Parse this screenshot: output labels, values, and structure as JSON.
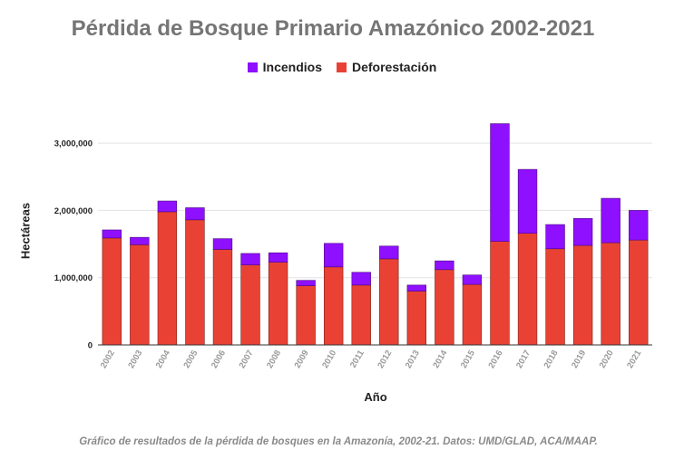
{
  "chart_data": {
    "type": "bar",
    "stacked": true,
    "title": "Pérdida de Bosque Primario Amazónico 2002-2021",
    "xlabel": "Año",
    "ylabel": "Hectáreas",
    "ylim": [
      0,
      3500000
    ],
    "yticks": [
      0,
      1000000,
      2000000,
      3000000
    ],
    "ytick_labels": [
      "0",
      "1,000,000",
      "2,000,000",
      "3,000,000"
    ],
    "grid": true,
    "legend_position": "top",
    "categories": [
      "2002",
      "2003",
      "2004",
      "2005",
      "2006",
      "2007",
      "2008",
      "2009",
      "2010",
      "2011",
      "2012",
      "2013",
      "2014",
      "2015",
      "2016",
      "2017",
      "2018",
      "2019",
      "2020",
      "2021"
    ],
    "series": [
      {
        "name": "Deforestación",
        "color": "#e94235",
        "values": [
          1590000,
          1490000,
          1980000,
          1860000,
          1420000,
          1190000,
          1230000,
          880000,
          1160000,
          890000,
          1280000,
          800000,
          1120000,
          900000,
          1540000,
          1660000,
          1430000,
          1480000,
          1520000,
          1560000
        ]
      },
      {
        "name": "Incendios",
        "color": "#8f0fff",
        "values": [
          120000,
          110000,
          160000,
          180000,
          160000,
          170000,
          140000,
          80000,
          350000,
          190000,
          190000,
          90000,
          130000,
          140000,
          1750000,
          950000,
          360000,
          400000,
          660000,
          440000
        ]
      }
    ],
    "caption": "Gráfico de resultados de la pérdida de bosques en la Amazonía, 2002-21. Datos: UMD/GLAD, ACA/MAAP."
  }
}
